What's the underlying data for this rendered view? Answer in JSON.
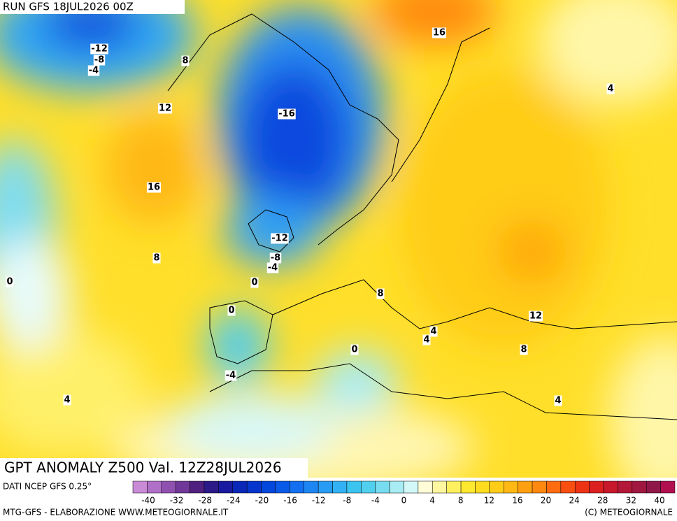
{
  "header": {
    "run": "RUN GFS 18JUL2026 00Z"
  },
  "title": "GPT ANOMALY Z500 Val. 12Z28JUL2026",
  "contour_labels": [
    "-12",
    "-8",
    "-4",
    "8",
    "12",
    "16",
    "8",
    "0",
    "4",
    "-16",
    "-12",
    "-8",
    "-4",
    "0",
    "0",
    "-4",
    "0",
    "8",
    "4",
    "4",
    "12",
    "8",
    "4",
    "16",
    "4"
  ],
  "colorbar": {
    "colors": [
      "#c98ad6",
      "#b070c8",
      "#9050b0",
      "#703898",
      "#502080",
      "#2c1a88",
      "#1a1aa0",
      "#0a28b8",
      "#0636cc",
      "#0048dc",
      "#0a5ae8",
      "#1470f0",
      "#1e86f2",
      "#289cf4",
      "#32b2f4",
      "#3cc4f0",
      "#50d0ee",
      "#78dcf0",
      "#a8ecf4",
      "#d2f8f8",
      "#fffcd8",
      "#fff6a0",
      "#fff060",
      "#ffe830",
      "#ffdc20",
      "#ffcc18",
      "#ffb814",
      "#ffa010",
      "#ff8810",
      "#ff6c10",
      "#f84e10",
      "#ec3414",
      "#dc2020",
      "#c8182c",
      "#b41838",
      "#a01840",
      "#901848",
      "#b01050"
    ],
    "labels": [
      "-40",
      "-32",
      "-28",
      "-24",
      "-20",
      "-16",
      "-12",
      "-8",
      "-4",
      "0",
      "4",
      "8",
      "12",
      "16",
      "20",
      "24",
      "28",
      "32",
      "40"
    ]
  },
  "footer": {
    "source": "DATI NCEP GFS 0.25°",
    "credit": "MTG-GFS - ELABORAZIONE WWW.METEOGIORNALE.IT",
    "copyright": "(C) METEOGIORNALE"
  }
}
